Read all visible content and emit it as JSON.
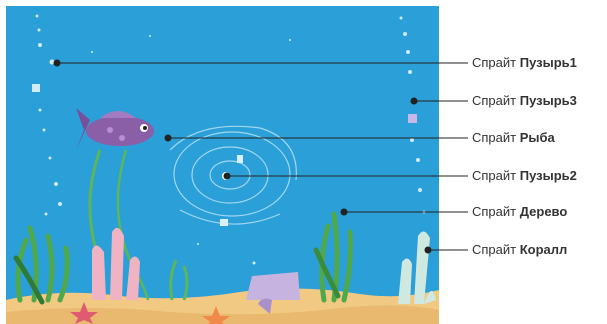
{
  "labels": [
    {
      "prefix": "Спрайт",
      "name": "Пузырь1"
    },
    {
      "prefix": "Спрайт",
      "name": "Пузырь3"
    },
    {
      "prefix": "Спрайт",
      "name": "Рыба"
    },
    {
      "prefix": "Спрайт",
      "name": "Пузырь2"
    },
    {
      "prefix": "Спрайт",
      "name": "Дерево"
    },
    {
      "prefix": "Спрайт",
      "name": "Коралл"
    }
  ],
  "colors": {
    "water": "#2a9fd8",
    "sand": "#f2c983",
    "leader_line": "#222222",
    "fish": "#8b5fa8",
    "weed": "#4fa84a",
    "coral": "#f0b3c4"
  }
}
